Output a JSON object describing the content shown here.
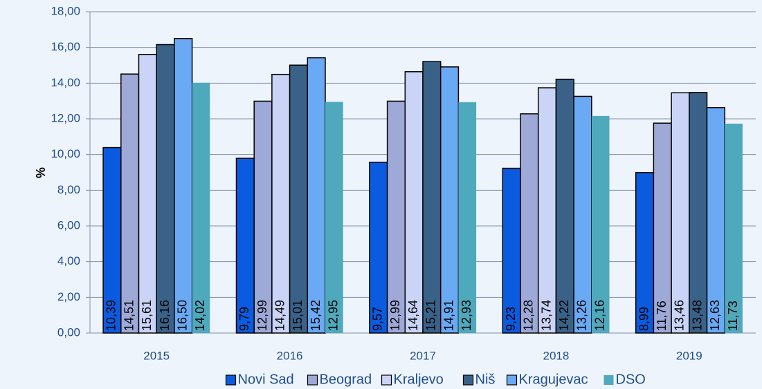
{
  "chart_data": {
    "type": "bar",
    "ylabel": "%",
    "categories": [
      "2015",
      "2016",
      "2017",
      "2018",
      "2019"
    ],
    "series": [
      {
        "name": "Novi Sad",
        "color": "#0b5be0",
        "values": [
          10.39,
          9.79,
          9.57,
          9.23,
          8.99
        ],
        "value_labels": [
          "10,39",
          "9,79",
          "9,57",
          "9,23",
          "8,99"
        ]
      },
      {
        "name": "Beograd",
        "color": "#9ea9d8",
        "values": [
          14.51,
          12.99,
          12.99,
          12.28,
          11.76
        ],
        "value_labels": [
          "14,51",
          "12,99",
          "12,99",
          "12,28",
          "11,76"
        ]
      },
      {
        "name": "Kraljevo",
        "color": "#cad4f6",
        "values": [
          15.61,
          14.49,
          14.64,
          13.74,
          13.46
        ],
        "value_labels": [
          "15,61",
          "14,49",
          "14,64",
          "13,74",
          "13,46"
        ]
      },
      {
        "name": "Niš",
        "color": "#3a6288",
        "values": [
          16.16,
          15.01,
          15.21,
          14.22,
          13.48
        ],
        "value_labels": [
          "16,16",
          "15,01",
          "15,21",
          "14,22",
          "13,48"
        ]
      },
      {
        "name": "Kragujevac",
        "color": "#6aaaf5",
        "values": [
          16.5,
          15.42,
          14.91,
          13.26,
          12.63
        ],
        "value_labels": [
          "16,50",
          "15,42",
          "14,91",
          "13,26",
          "12,63"
        ]
      },
      {
        "name": "DSO",
        "color": "#4fa9bd",
        "values": [
          14.02,
          12.95,
          12.93,
          12.16,
          11.73
        ],
        "value_labels": [
          "14,02",
          "12,95",
          "12,93",
          "12,16",
          "11,73"
        ]
      }
    ],
    "ylim": [
      0,
      18
    ],
    "yticks": [
      {
        "value": 0,
        "label": "0,00"
      },
      {
        "value": 2,
        "label": "2,00"
      },
      {
        "value": 4,
        "label": "4,00"
      },
      {
        "value": 6,
        "label": "6,00"
      },
      {
        "value": 8,
        "label": "8,00"
      },
      {
        "value": 10,
        "label": "10,00"
      },
      {
        "value": 12,
        "label": "12,00"
      },
      {
        "value": 14,
        "label": "14,00"
      },
      {
        "value": 16,
        "label": "16,00"
      },
      {
        "value": 18,
        "label": "18,00"
      }
    ],
    "grid": true,
    "legend": "bottom"
  }
}
